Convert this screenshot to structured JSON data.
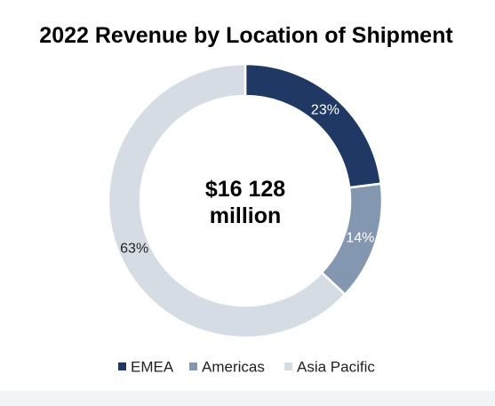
{
  "chart_data": {
    "type": "pie",
    "title": "2022 Revenue by Location of Shipment",
    "center_text": [
      "$16 128",
      "million"
    ],
    "categories": [
      "EMEA",
      "Americas",
      "Asia Pacific"
    ],
    "values": [
      23,
      14,
      63
    ],
    "value_labels": [
      "23%",
      "14%",
      "63%"
    ],
    "unit": "%",
    "colors": [
      "#1f3864",
      "#8497b0",
      "#d6dce4"
    ],
    "label_colors": [
      "#ffffff",
      "#ffffff",
      "#222222"
    ],
    "donut": true,
    "legend_position": "bottom"
  }
}
